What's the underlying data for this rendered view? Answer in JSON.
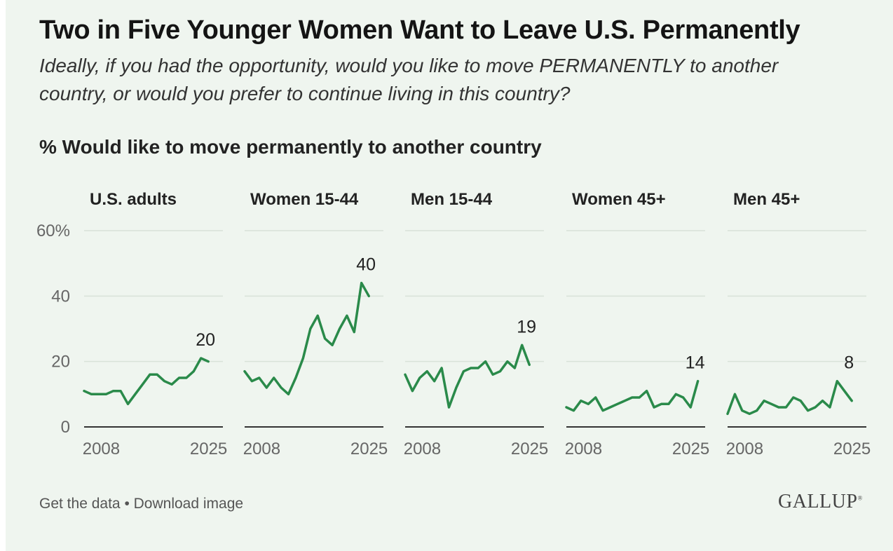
{
  "title": "Two in Five Younger Women Want to Leave U.S. Permanently",
  "subtitle": "Ideally, if you had the opportunity, would you like to move PERMANENTLY to another country, or would you prefer to continue living in this country?",
  "measure_label": "% Would like to move permanently to another country",
  "footer": {
    "get_data": "Get the data",
    "separator": "•",
    "download": "Download image"
  },
  "logo": "GALLUP",
  "colors": {
    "line": "#2a8a4a",
    "grid": "#d9e2d9",
    "axis": "#333333",
    "text": "#222222",
    "tick": "#666666",
    "background": "#eff5ef"
  },
  "chart_data": {
    "type": "line",
    "measure": "% Would like to move permanently to another country",
    "y_ticks": [
      "60%",
      "40",
      "20",
      "0"
    ],
    "y_tick_values": [
      60,
      40,
      20,
      0
    ],
    "ylim": [
      0,
      60
    ],
    "x_tick_labels": [
      "2008",
      "2025"
    ],
    "x_tick_values": [
      2008,
      2025
    ],
    "xlim": [
      2007,
      2026
    ],
    "x": [
      2007,
      2008,
      2009,
      2010,
      2011,
      2012,
      2013,
      2014,
      2015,
      2016,
      2017,
      2018,
      2019,
      2020,
      2021,
      2022,
      2023,
      2024,
      2025,
      2026
    ],
    "series": [
      {
        "name": "U.S. adults",
        "end_label": "20",
        "values": [
          11,
          10,
          10,
          10,
          11,
          11,
          7,
          10,
          13,
          16,
          16,
          14,
          13,
          15,
          15,
          17,
          21,
          20,
          null,
          null
        ]
      },
      {
        "name": "Women 15-44",
        "end_label": "40",
        "values": [
          17,
          14,
          15,
          12,
          15,
          12,
          10,
          15,
          21,
          30,
          34,
          27,
          25,
          30,
          34,
          29,
          44,
          40,
          null,
          null
        ]
      },
      {
        "name": "Men 15-44",
        "end_label": "19",
        "values": [
          16,
          11,
          15,
          17,
          14,
          18,
          6,
          12,
          17,
          18,
          18,
          20,
          16,
          17,
          20,
          18,
          25,
          19,
          null,
          null
        ]
      },
      {
        "name": "Women 45+",
        "end_label": "14",
        "values": [
          6,
          5,
          8,
          7,
          9,
          5,
          6,
          7,
          8,
          9,
          9,
          11,
          6,
          7,
          7,
          10,
          9,
          6,
          14,
          null
        ]
      },
      {
        "name": "Men 45+",
        "end_label": "8",
        "values": [
          4,
          10,
          5,
          4,
          5,
          8,
          7,
          6,
          6,
          9,
          8,
          5,
          6,
          8,
          6,
          14,
          11,
          8,
          null,
          null
        ]
      }
    ]
  }
}
